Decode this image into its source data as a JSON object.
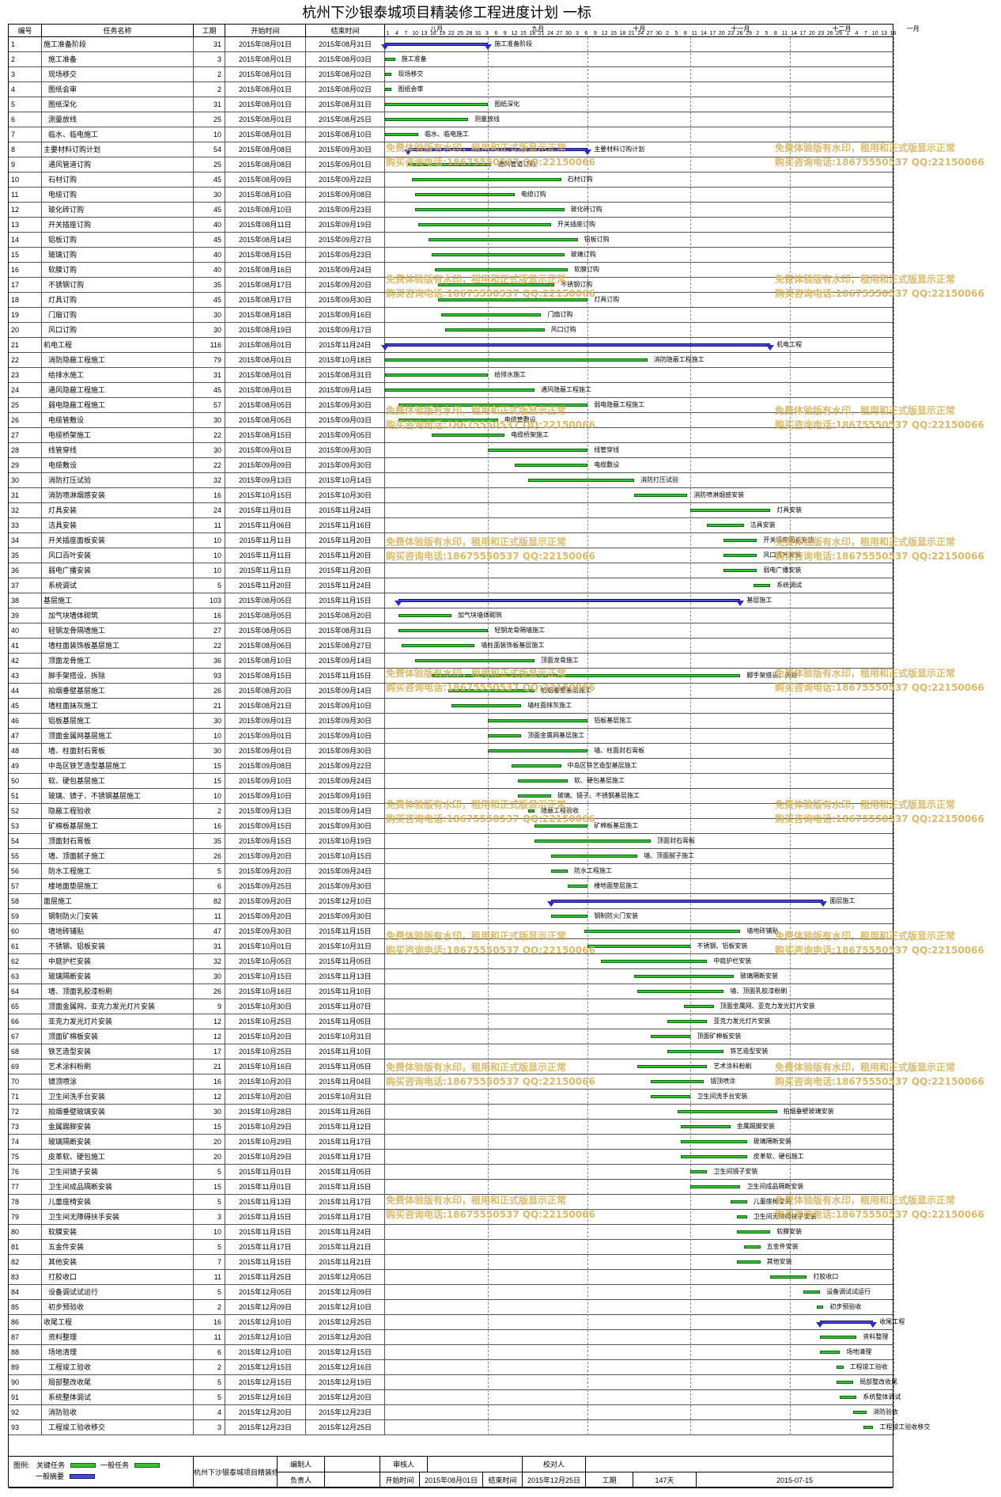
{
  "title": "杭州下沙银泰城项目精装修工程进度计划 一标",
  "headers": {
    "id": "编号",
    "name": "任务名称",
    "dur": "工期",
    "start": "开始时间",
    "end": "结束时间"
  },
  "months": [
    "八月",
    "九月",
    "十月",
    "十一月",
    "十二月",
    "一月"
  ],
  "ticks": [
    "1",
    "4",
    "7",
    "10",
    "13",
    "16",
    "19",
    "22",
    "25",
    "28",
    "31",
    "3",
    "6",
    "9",
    "12",
    "15",
    "18",
    "21",
    "24",
    "27",
    "30",
    "3",
    "6",
    "9",
    "12",
    "15",
    "18",
    "21",
    "24",
    "27",
    "30",
    "2",
    "5",
    "8",
    "11",
    "14",
    "17",
    "20",
    "23",
    "26",
    "29",
    "2",
    "5",
    "8",
    "11",
    "14",
    "17",
    "20",
    "23",
    "26",
    "29",
    "1",
    "4",
    "7",
    "10",
    "13",
    "16"
  ],
  "tasks": [
    {
      "id": "1",
      "name": "施工准备阶段",
      "dur": "31",
      "start": "2015年08月01日",
      "end": "2015年08月31日",
      "s": 0,
      "e": 31,
      "sum": true
    },
    {
      "id": "2",
      "name": "施工准备",
      "dur": "3",
      "start": "2015年08月01日",
      "end": "2015年08月03日",
      "s": 0,
      "e": 3
    },
    {
      "id": "3",
      "name": "现场移交",
      "dur": "2",
      "start": "2015年08月01日",
      "end": "2015年08月02日",
      "s": 0,
      "e": 2
    },
    {
      "id": "4",
      "name": "图纸会审",
      "dur": "2",
      "start": "2015年08月01日",
      "end": "2015年08月02日",
      "s": 0,
      "e": 2
    },
    {
      "id": "5",
      "name": "图纸深化",
      "dur": "31",
      "start": "2015年08月01日",
      "end": "2015年08月31日",
      "s": 0,
      "e": 31
    },
    {
      "id": "6",
      "name": "测量放线",
      "dur": "25",
      "start": "2015年08月01日",
      "end": "2015年08月25日",
      "s": 0,
      "e": 25
    },
    {
      "id": "7",
      "name": "临水、临电施工",
      "dur": "10",
      "start": "2015年08月01日",
      "end": "2015年08月10日",
      "s": 0,
      "e": 10
    },
    {
      "id": "8",
      "name": "主要材料订购计划",
      "dur": "54",
      "start": "2015年08月08日",
      "end": "2015年09月30日",
      "s": 7,
      "e": 61,
      "sum": true
    },
    {
      "id": "9",
      "name": "通风管道订购",
      "dur": "25",
      "start": "2015年08月08日",
      "end": "2015年09月01日",
      "s": 7,
      "e": 32
    },
    {
      "id": "10",
      "name": "石材订购",
      "dur": "45",
      "start": "2015年08月09日",
      "end": "2015年09月22日",
      "s": 8,
      "e": 53
    },
    {
      "id": "11",
      "name": "电缆订购",
      "dur": "30",
      "start": "2015年08月10日",
      "end": "2015年09月08日",
      "s": 9,
      "e": 39
    },
    {
      "id": "12",
      "name": "玻化砖订购",
      "dur": "45",
      "start": "2015年08月10日",
      "end": "2015年09月23日",
      "s": 9,
      "e": 54
    },
    {
      "id": "13",
      "name": "开关插座订购",
      "dur": "40",
      "start": "2015年08月11日",
      "end": "2015年09月19日",
      "s": 10,
      "e": 50
    },
    {
      "id": "14",
      "name": "铝板订购",
      "dur": "45",
      "start": "2015年08月14日",
      "end": "2015年09月27日",
      "s": 13,
      "e": 58
    },
    {
      "id": "15",
      "name": "玻璃订购",
      "dur": "40",
      "start": "2015年08月15日",
      "end": "2015年09月23日",
      "s": 14,
      "e": 54
    },
    {
      "id": "16",
      "name": "软膜订购",
      "dur": "40",
      "start": "2015年08月16日",
      "end": "2015年09月24日",
      "s": 15,
      "e": 55
    },
    {
      "id": "17",
      "name": "不锈钢订购",
      "dur": "35",
      "start": "2015年08月17日",
      "end": "2015年09月20日",
      "s": 16,
      "e": 51
    },
    {
      "id": "18",
      "name": "灯具订购",
      "dur": "45",
      "start": "2015年08月17日",
      "end": "2015年09月30日",
      "s": 16,
      "e": 61
    },
    {
      "id": "19",
      "name": "门扇订购",
      "dur": "30",
      "start": "2015年08月18日",
      "end": "2015年09月16日",
      "s": 17,
      "e": 47
    },
    {
      "id": "20",
      "name": "风口订购",
      "dur": "30",
      "start": "2015年08月19日",
      "end": "2015年09月17日",
      "s": 18,
      "e": 48
    },
    {
      "id": "21",
      "name": "机电工程",
      "dur": "116",
      "start": "2015年08月01日",
      "end": "2015年11月24日",
      "s": 0,
      "e": 116,
      "sum": true
    },
    {
      "id": "22",
      "name": "消防隐蔽工程施工",
      "dur": "79",
      "start": "2015年08月01日",
      "end": "2015年10月18日",
      "s": 0,
      "e": 79
    },
    {
      "id": "23",
      "name": "给排水施工",
      "dur": "31",
      "start": "2015年08月01日",
      "end": "2015年08月31日",
      "s": 0,
      "e": 31
    },
    {
      "id": "24",
      "name": "通风隐蔽工程施工",
      "dur": "45",
      "start": "2015年08月01日",
      "end": "2015年09月14日",
      "s": 0,
      "e": 45
    },
    {
      "id": "25",
      "name": "弱电隐蔽工程施工",
      "dur": "57",
      "start": "2015年08月05日",
      "end": "2015年09月30日",
      "s": 4,
      "e": 61
    },
    {
      "id": "26",
      "name": "电缆管敷设",
      "dur": "30",
      "start": "2015年08月05日",
      "end": "2015年09月03日",
      "s": 4,
      "e": 34
    },
    {
      "id": "27",
      "name": "电缆桥架施工",
      "dur": "22",
      "start": "2015年08月15日",
      "end": "2015年09月05日",
      "s": 14,
      "e": 36
    },
    {
      "id": "28",
      "name": "线管穿线",
      "dur": "30",
      "start": "2015年09月01日",
      "end": "2015年09月30日",
      "s": 31,
      "e": 61
    },
    {
      "id": "29",
      "name": "电缆敷设",
      "dur": "22",
      "start": "2015年09月09日",
      "end": "2015年09月30日",
      "s": 39,
      "e": 61
    },
    {
      "id": "30",
      "name": "消防打压试验",
      "dur": "32",
      "start": "2015年09月13日",
      "end": "2015年10月14日",
      "s": 43,
      "e": 75
    },
    {
      "id": "31",
      "name": "消防喷淋烟感安装",
      "dur": "16",
      "start": "2015年10月15日",
      "end": "2015年10月30日",
      "s": 75,
      "e": 91
    },
    {
      "id": "32",
      "name": "灯具安装",
      "dur": "24",
      "start": "2015年11月01日",
      "end": "2015年11月24日",
      "s": 92,
      "e": 116
    },
    {
      "id": "33",
      "name": "洁具安装",
      "dur": "11",
      "start": "2015年11月06日",
      "end": "2015年11月16日",
      "s": 97,
      "e": 108
    },
    {
      "id": "34",
      "name": "开关插座面板安装",
      "dur": "10",
      "start": "2015年11月11日",
      "end": "2015年11月20日",
      "s": 102,
      "e": 112
    },
    {
      "id": "35",
      "name": "风口百叶安装",
      "dur": "10",
      "start": "2015年11月11日",
      "end": "2015年11月20日",
      "s": 102,
      "e": 112
    },
    {
      "id": "36",
      "name": "弱电广播安装",
      "dur": "10",
      "start": "2015年11月11日",
      "end": "2015年11月20日",
      "s": 102,
      "e": 112
    },
    {
      "id": "37",
      "name": "系统调试",
      "dur": "5",
      "start": "2015年11月20日",
      "end": "2015年11月24日",
      "s": 111,
      "e": 116
    },
    {
      "id": "38",
      "name": "基层施工",
      "dur": "103",
      "start": "2015年08月05日",
      "end": "2015年11月15日",
      "s": 4,
      "e": 107,
      "sum": true
    },
    {
      "id": "39",
      "name": "加气块墙体砌筑",
      "dur": "16",
      "start": "2015年08月05日",
      "end": "2015年08月20日",
      "s": 4,
      "e": 20
    },
    {
      "id": "40",
      "name": "轻钢龙骨隔墙施工",
      "dur": "27",
      "start": "2015年08月05日",
      "end": "2015年08月31日",
      "s": 4,
      "e": 31
    },
    {
      "id": "41",
      "name": "墙柱面装饰板基层施工",
      "dur": "22",
      "start": "2015年08月06日",
      "end": "2015年08月27日",
      "s": 5,
      "e": 27
    },
    {
      "id": "42",
      "name": "顶面龙骨施工",
      "dur": "36",
      "start": "2015年08月10日",
      "end": "2015年09月14日",
      "s": 9,
      "e": 45
    },
    {
      "id": "43",
      "name": "脚手架搭设、拆除",
      "dur": "93",
      "start": "2015年08月15日",
      "end": "2015年11月15日",
      "s": 14,
      "e": 107
    },
    {
      "id": "44",
      "name": "拍烟垂壁基层施工",
      "dur": "26",
      "start": "2015年08月20日",
      "end": "2015年09月14日",
      "s": 19,
      "e": 45
    },
    {
      "id": "45",
      "name": "墙柱面抹灰施工",
      "dur": "21",
      "start": "2015年08月21日",
      "end": "2015年09月10日",
      "s": 20,
      "e": 41
    },
    {
      "id": "46",
      "name": "铝板基层施工",
      "dur": "30",
      "start": "2015年09月01日",
      "end": "2015年09月30日",
      "s": 31,
      "e": 61
    },
    {
      "id": "47",
      "name": "顶面金属网基层施工",
      "dur": "10",
      "start": "2015年09月01日",
      "end": "2015年09月10日",
      "s": 31,
      "e": 41
    },
    {
      "id": "48",
      "name": "墙、柱面封石膏板",
      "dur": "30",
      "start": "2015年09月01日",
      "end": "2015年09月30日",
      "s": 31,
      "e": 61
    },
    {
      "id": "49",
      "name": "中岛区铁艺造型基层施工",
      "dur": "15",
      "start": "2015年09月08日",
      "end": "2015年09月22日",
      "s": 38,
      "e": 53
    },
    {
      "id": "50",
      "name": "软、硬包基层施工",
      "dur": "15",
      "start": "2015年09月10日",
      "end": "2015年09月24日",
      "s": 40,
      "e": 55
    },
    {
      "id": "51",
      "name": "玻璃、镜子、不锈钢基层施工",
      "dur": "10",
      "start": "2015年09月10日",
      "end": "2015年09月19日",
      "s": 40,
      "e": 50
    },
    {
      "id": "52",
      "name": "隐蔽工程验收",
      "dur": "2",
      "start": "2015年09月13日",
      "end": "2015年09月14日",
      "s": 43,
      "e": 45
    },
    {
      "id": "53",
      "name": "矿棉板基层施工",
      "dur": "16",
      "start": "2015年09月15日",
      "end": "2015年09月30日",
      "s": 45,
      "e": 61
    },
    {
      "id": "54",
      "name": "顶面封石膏板",
      "dur": "35",
      "start": "2015年09月15日",
      "end": "2015年10月19日",
      "s": 45,
      "e": 80
    },
    {
      "id": "55",
      "name": "墙、顶面腻子施工",
      "dur": "26",
      "start": "2015年09月20日",
      "end": "2015年10月15日",
      "s": 50,
      "e": 76
    },
    {
      "id": "56",
      "name": "防水工程施工",
      "dur": "5",
      "start": "2015年09月20日",
      "end": "2015年09月24日",
      "s": 50,
      "e": 55
    },
    {
      "id": "57",
      "name": "楼地面垫层施工",
      "dur": "6",
      "start": "2015年09月25日",
      "end": "2015年09月30日",
      "s": 55,
      "e": 61
    },
    {
      "id": "58",
      "name": "面层施工",
      "dur": "82",
      "start": "2015年09月20日",
      "end": "2015年12月10日",
      "s": 50,
      "e": 132,
      "sum": true
    },
    {
      "id": "59",
      "name": "钢制防火门安装",
      "dur": "11",
      "start": "2015年09月20日",
      "end": "2015年09月30日",
      "s": 50,
      "e": 61
    },
    {
      "id": "60",
      "name": "墙地砖铺贴",
      "dur": "47",
      "start": "2015年09月30日",
      "end": "2015年11月15日",
      "s": 60,
      "e": 107
    },
    {
      "id": "61",
      "name": "不锈钢、铝板安装",
      "dur": "31",
      "start": "2015年10月01日",
      "end": "2015年10月31日",
      "s": 61,
      "e": 92
    },
    {
      "id": "62",
      "name": "中庭护栏安装",
      "dur": "32",
      "start": "2015年10月05日",
      "end": "2015年11月05日",
      "s": 65,
      "e": 97
    },
    {
      "id": "63",
      "name": "玻璃隔断安装",
      "dur": "30",
      "start": "2015年10月15日",
      "end": "2015年11月13日",
      "s": 75,
      "e": 105
    },
    {
      "id": "64",
      "name": "墙、顶面乳胶漆粉刷",
      "dur": "26",
      "start": "2015年10月16日",
      "end": "2015年11月10日",
      "s": 76,
      "e": 102
    },
    {
      "id": "65",
      "name": "顶面金属网、亚克力发光灯片安装",
      "dur": "9",
      "start": "2015年10月30日",
      "end": "2015年11月07日",
      "s": 90,
      "e": 99
    },
    {
      "id": "66",
      "name": "亚克力发光灯片安装",
      "dur": "12",
      "start": "2015年10月25日",
      "end": "2015年11月05日",
      "s": 85,
      "e": 97
    },
    {
      "id": "67",
      "name": "顶面矿棉板安装",
      "dur": "12",
      "start": "2015年10月20日",
      "end": "2015年10月31日",
      "s": 80,
      "e": 92
    },
    {
      "id": "68",
      "name": "铁艺造型安装",
      "dur": "17",
      "start": "2015年10月25日",
      "end": "2015年11月10日",
      "s": 85,
      "e": 102
    },
    {
      "id": "69",
      "name": "艺术涂料粉刷",
      "dur": "21",
      "start": "2015年10月16日",
      "end": "2015年11月05日",
      "s": 76,
      "e": 97
    },
    {
      "id": "70",
      "name": "镜顶喷涂",
      "dur": "16",
      "start": "2015年10月20日",
      "end": "2015年11月04日",
      "s": 80,
      "e": 96
    },
    {
      "id": "71",
      "name": "卫生间洗手台安装",
      "dur": "12",
      "start": "2015年10月20日",
      "end": "2015年10月31日",
      "s": 80,
      "e": 92
    },
    {
      "id": "72",
      "name": "拍烟垂壁玻璃安装",
      "dur": "30",
      "start": "2015年10月28日",
      "end": "2015年11月26日",
      "s": 88,
      "e": 118
    },
    {
      "id": "73",
      "name": "金属踢脚安装",
      "dur": "15",
      "start": "2015年10月29日",
      "end": "2015年11月12日",
      "s": 89,
      "e": 104
    },
    {
      "id": "74",
      "name": "玻璃隔断安装",
      "dur": "20",
      "start": "2015年10月29日",
      "end": "2015年11月17日",
      "s": 89,
      "e": 109
    },
    {
      "id": "75",
      "name": "皮革软、硬包施工",
      "dur": "20",
      "start": "2015年10月29日",
      "end": "2015年11月17日",
      "s": 89,
      "e": 109
    },
    {
      "id": "76",
      "name": "卫生间镜子安装",
      "dur": "5",
      "start": "2015年11月01日",
      "end": "2015年11月05日",
      "s": 92,
      "e": 97
    },
    {
      "id": "77",
      "name": "卫生间成品隔断安装",
      "dur": "15",
      "start": "2015年11月01日",
      "end": "2015年11月15日",
      "s": 92,
      "e": 107
    },
    {
      "id": "78",
      "name": "儿童座椅安装",
      "dur": "5",
      "start": "2015年11月13日",
      "end": "2015年11月17日",
      "s": 104,
      "e": 109
    },
    {
      "id": "79",
      "name": "卫生间无障碍扶手安装",
      "dur": "3",
      "start": "2015年11月15日",
      "end": "2015年11月17日",
      "s": 106,
      "e": 109
    },
    {
      "id": "80",
      "name": "软膜安装",
      "dur": "10",
      "start": "2015年11月15日",
      "end": "2015年11月24日",
      "s": 106,
      "e": 116
    },
    {
      "id": "81",
      "name": "五金件安装",
      "dur": "5",
      "start": "2015年11月17日",
      "end": "2015年11月21日",
      "s": 108,
      "e": 113
    },
    {
      "id": "82",
      "name": "其他安装",
      "dur": "7",
      "start": "2015年11月15日",
      "end": "2015年11月21日",
      "s": 106,
      "e": 113
    },
    {
      "id": "83",
      "name": "打胶收口",
      "dur": "11",
      "start": "2015年11月25日",
      "end": "2015年12月05日",
      "s": 116,
      "e": 127
    },
    {
      "id": "84",
      "name": "设备调试试运行",
      "dur": "5",
      "start": "2015年12月05日",
      "end": "2015年12月09日",
      "s": 126,
      "e": 131
    },
    {
      "id": "85",
      "name": "初步预验收",
      "dur": "2",
      "start": "2015年12月09日",
      "end": "2015年12月10日",
      "s": 130,
      "e": 132
    },
    {
      "id": "86",
      "name": "收尾工程",
      "dur": "16",
      "start": "2015年12月10日",
      "end": "2015年12月25日",
      "s": 131,
      "e": 147,
      "sum": true
    },
    {
      "id": "87",
      "name": "资料整理",
      "dur": "11",
      "start": "2015年12月10日",
      "end": "2015年12月20日",
      "s": 131,
      "e": 142
    },
    {
      "id": "88",
      "name": "场地清理",
      "dur": "6",
      "start": "2015年12月10日",
      "end": "2015年12月15日",
      "s": 131,
      "e": 137
    },
    {
      "id": "89",
      "name": "工程竣工验收",
      "dur": "2",
      "start": "2015年12月15日",
      "end": "2015年12月16日",
      "s": 136,
      "e": 138
    },
    {
      "id": "90",
      "name": "局部整改收尾",
      "dur": "5",
      "start": "2015年12月15日",
      "end": "2015年12月19日",
      "s": 136,
      "e": 141
    },
    {
      "id": "91",
      "name": "系统整体调试",
      "dur": "5",
      "start": "2015年12月16日",
      "end": "2015年12月20日",
      "s": 137,
      "e": 142
    },
    {
      "id": "92",
      "name": "消防验收",
      "dur": "4",
      "start": "2015年12月20日",
      "end": "2015年12月23日",
      "s": 141,
      "e": 145
    },
    {
      "id": "93",
      "name": "工程竣工验收移交",
      "dur": "3",
      "start": "2015年12月23日",
      "end": "2015年12月25日",
      "s": 144,
      "e": 147
    }
  ],
  "footer": {
    "legend_label": "图例:",
    "legend_key": "关键任务",
    "legend_normal": "一般任务",
    "legend_summary": "一般摘要",
    "project_name": "杭州下沙银泰城项目精装修工程",
    "prepared_by": "编制人",
    "reviewer": "审核人",
    "checker": "校对人",
    "responsible": "负责人",
    "start_label": "开始时间",
    "start_value": "2015年08月01日",
    "end_label": "结束时间",
    "end_value": "2015年12月25日",
    "period_label": "工期",
    "period_value": "147天",
    "date_value": "2015-07-15"
  },
  "watermark": {
    "line1": "免费体验版有水印，租用和正式版显示正常",
    "line2": "购买咨询电话:18675550537 QQ:22150066"
  },
  "colors": {
    "task_bar": "#3bbf3b",
    "summary_bar": "#4a4ad8",
    "watermark": "#d9b35b"
  }
}
